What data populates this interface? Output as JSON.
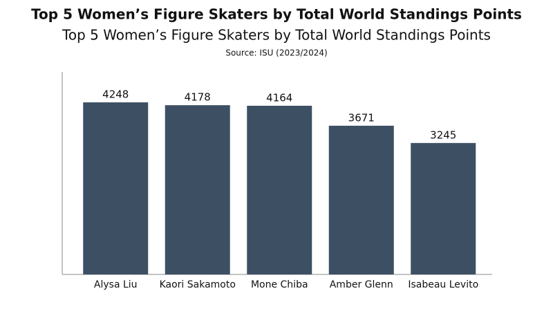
{
  "chart_data": {
    "type": "bar",
    "title": "Top 5 Women’s Figure Skaters by Total World Standings Points",
    "subtitle": "Top 5 Women’s Figure Skaters by Total World Standings Points",
    "source": "Source: ISU (2023/2024)",
    "categories": [
      "Alysa Liu",
      "Kaori Sakamoto",
      "Mone Chiba",
      "Amber Glenn",
      "Isabeau Levito"
    ],
    "values": [
      4248,
      4178,
      4164,
      3671,
      3245
    ],
    "color": "#3d5063",
    "ylim": [
      0,
      5000
    ]
  }
}
